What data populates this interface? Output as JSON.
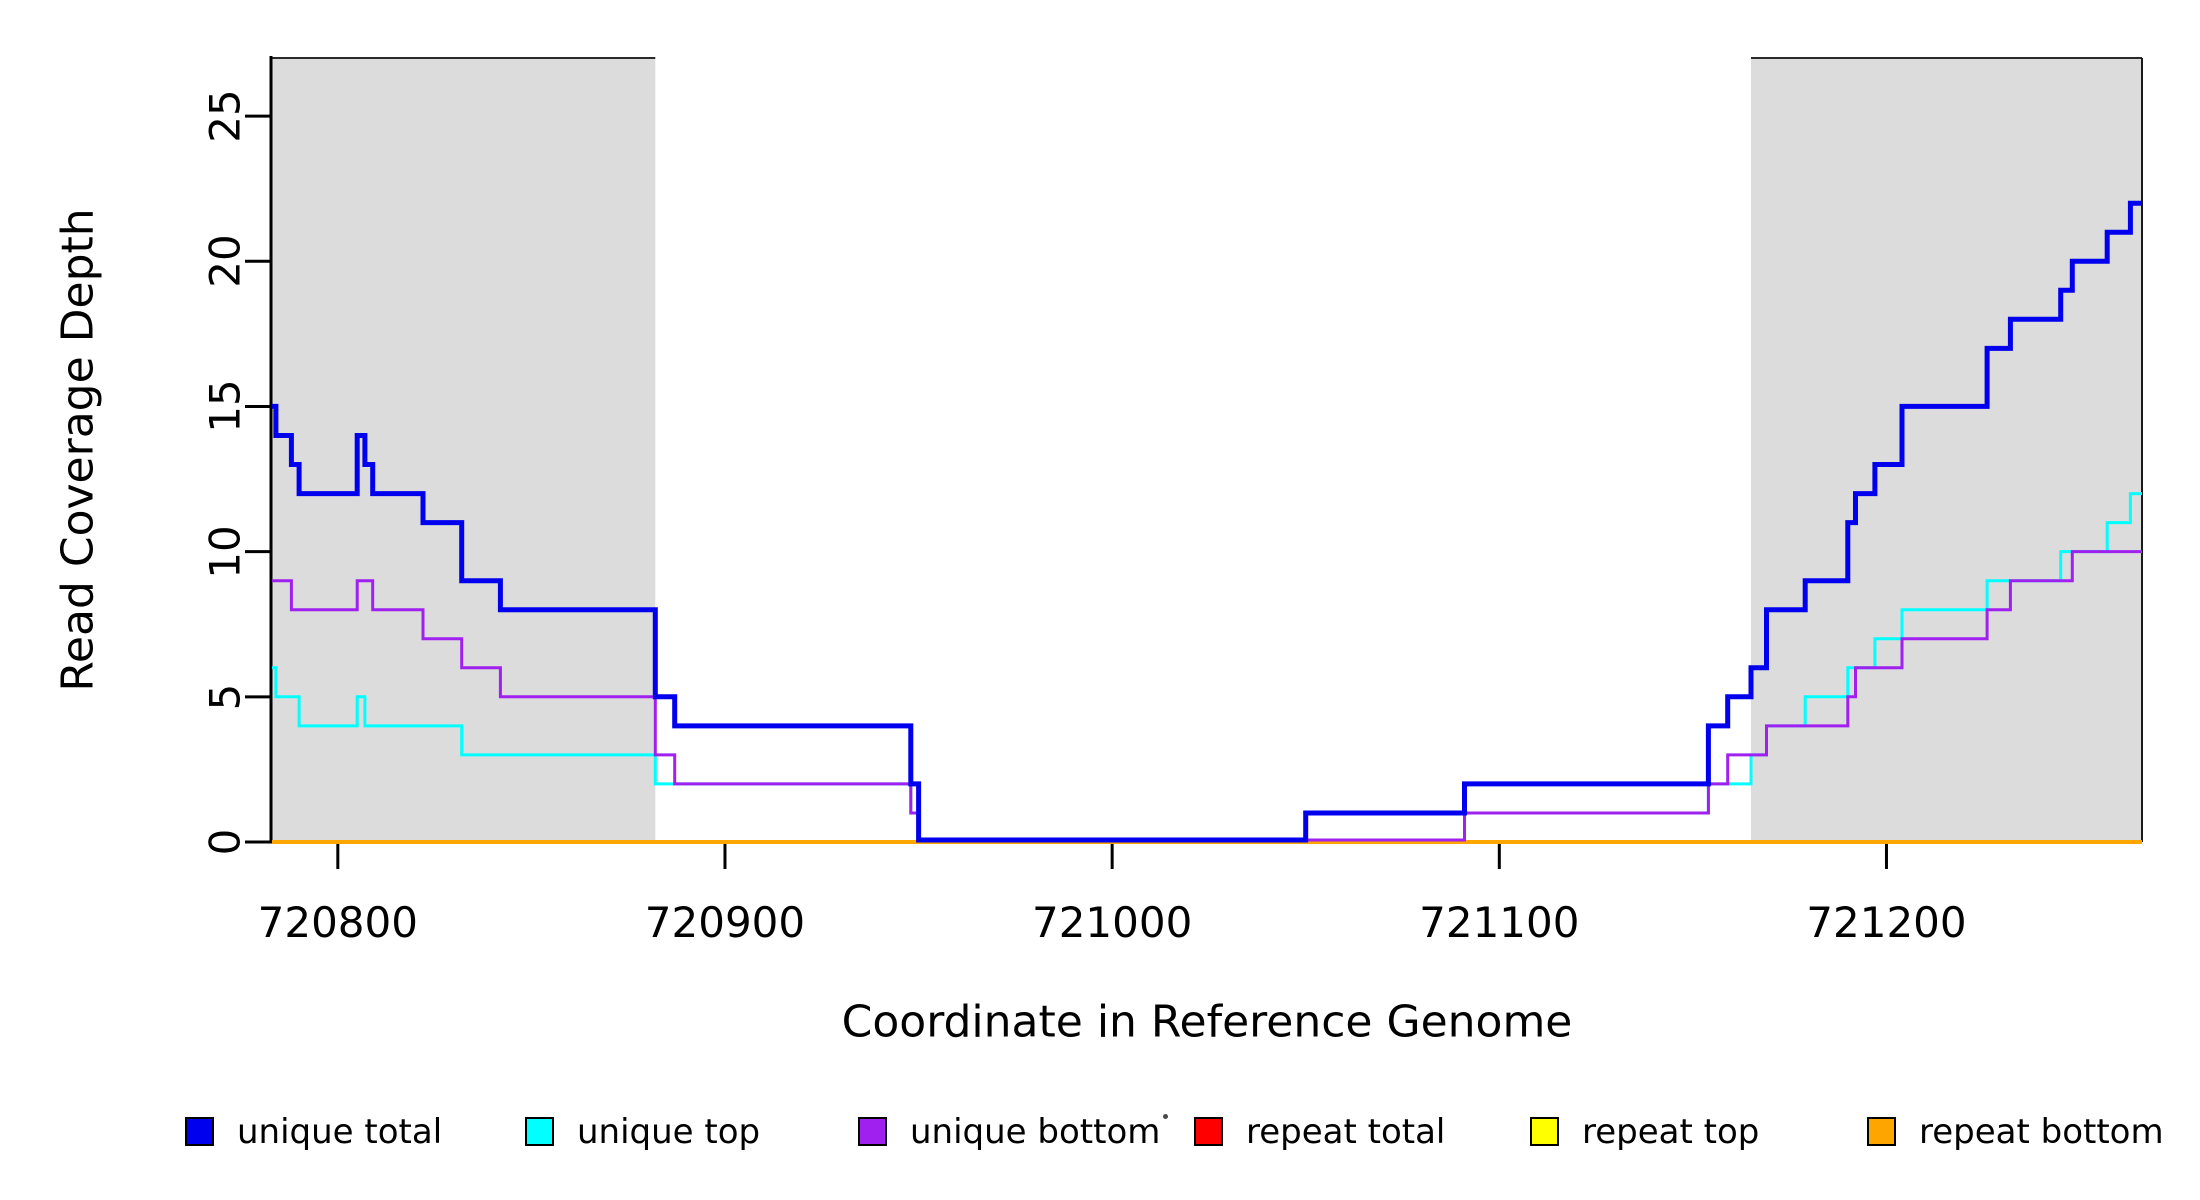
{
  "chart_data": {
    "type": "line",
    "subtype": "step",
    "title": "",
    "xlabel": "Coordinate in Reference Genome",
    "ylabel": "Read Coverage Depth",
    "xlim": [
      720783,
      721266
    ],
    "ylim": [
      0,
      27
    ],
    "x_ticks": [
      720800,
      720900,
      721000,
      721100,
      721200
    ],
    "y_ticks": [
      0,
      5,
      10,
      15,
      20,
      25
    ],
    "grid": false,
    "legend_position": "bottom",
    "background_color": "#ffffff",
    "shaded_regions": [
      {
        "x_start": 720783,
        "x_end": 720882,
        "color": "#DCDCDC"
      },
      {
        "x_start": 721165,
        "x_end": 721266,
        "color": "#DCDCDC"
      }
    ],
    "series": [
      {
        "name": "unique total",
        "color": "#0000EE",
        "line_width": 5,
        "steps": [
          [
            720783,
            15
          ],
          [
            720784,
            14
          ],
          [
            720788,
            13
          ],
          [
            720790,
            12
          ],
          [
            720805,
            14
          ],
          [
            720807,
            13
          ],
          [
            720809,
            12
          ],
          [
            720822,
            11
          ],
          [
            720832,
            9
          ],
          [
            720842,
            8
          ],
          [
            720882,
            5
          ],
          [
            720887,
            4
          ],
          [
            720948,
            2
          ],
          [
            720950,
            0
          ],
          [
            721050,
            1
          ],
          [
            721091,
            2
          ],
          [
            721154,
            4
          ],
          [
            721159,
            5
          ],
          [
            721165,
            6
          ],
          [
            721169,
            8
          ],
          [
            721179,
            9
          ],
          [
            721190,
            11
          ],
          [
            721192,
            12
          ],
          [
            721197,
            13
          ],
          [
            721204,
            15
          ],
          [
            721226,
            17
          ],
          [
            721232,
            18
          ],
          [
            721245,
            19
          ],
          [
            721248,
            20
          ],
          [
            721257,
            21
          ],
          [
            721263,
            22
          ]
        ]
      },
      {
        "name": "unique top",
        "color": "#00FFFF",
        "line_width": 3,
        "steps": [
          [
            720783,
            6
          ],
          [
            720784,
            5
          ],
          [
            720790,
            4
          ],
          [
            720805,
            5
          ],
          [
            720807,
            4
          ],
          [
            720832,
            3
          ],
          [
            720882,
            2
          ],
          [
            720948,
            1
          ],
          [
            720950,
            0
          ],
          [
            721050,
            1
          ],
          [
            721154,
            2
          ],
          [
            721165,
            3
          ],
          [
            721169,
            4
          ],
          [
            721179,
            5
          ],
          [
            721190,
            6
          ],
          [
            721197,
            7
          ],
          [
            721204,
            8
          ],
          [
            721226,
            9
          ],
          [
            721245,
            10
          ],
          [
            721257,
            11
          ],
          [
            721263,
            12
          ]
        ]
      },
      {
        "name": "unique bottom",
        "color": "#A020F0",
        "line_width": 3,
        "steps": [
          [
            720783,
            9
          ],
          [
            720788,
            8
          ],
          [
            720805,
            9
          ],
          [
            720809,
            8
          ],
          [
            720822,
            7
          ],
          [
            720832,
            6
          ],
          [
            720842,
            5
          ],
          [
            720882,
            3
          ],
          [
            720887,
            2
          ],
          [
            720948,
            1
          ],
          [
            720950,
            0
          ],
          [
            721091,
            1
          ],
          [
            721154,
            2
          ],
          [
            721159,
            3
          ],
          [
            721169,
            4
          ],
          [
            721190,
            5
          ],
          [
            721192,
            6
          ],
          [
            721204,
            7
          ],
          [
            721226,
            8
          ],
          [
            721232,
            9
          ],
          [
            721248,
            10
          ]
        ]
      },
      {
        "name": "repeat total",
        "color": "#FF0000",
        "line_width": 3,
        "steps": [
          [
            720783,
            0
          ]
        ]
      },
      {
        "name": "repeat top",
        "color": "#FFFF00",
        "line_width": 3,
        "steps": [
          [
            720783,
            0
          ]
        ]
      },
      {
        "name": "repeat bottom",
        "color": "#FFA500",
        "line_width": 4,
        "steps": [
          [
            720783,
            0
          ]
        ]
      }
    ]
  },
  "axes": {
    "x_title": "Coordinate in Reference Genome",
    "y_title": "Read Coverage Depth",
    "axis_color": "#000000"
  },
  "legend": {
    "items": [
      {
        "label": "unique total",
        "color": "#0000EE"
      },
      {
        "label": "unique top",
        "color": "#00FFFF"
      },
      {
        "label": "unique bottom",
        "color": "#A020F0"
      },
      {
        "label": "repeat total",
        "color": "#FF0000"
      },
      {
        "label": "repeat top",
        "color": "#FFFF00"
      },
      {
        "label": "repeat bottom",
        "color": "#FFA500"
      }
    ]
  }
}
